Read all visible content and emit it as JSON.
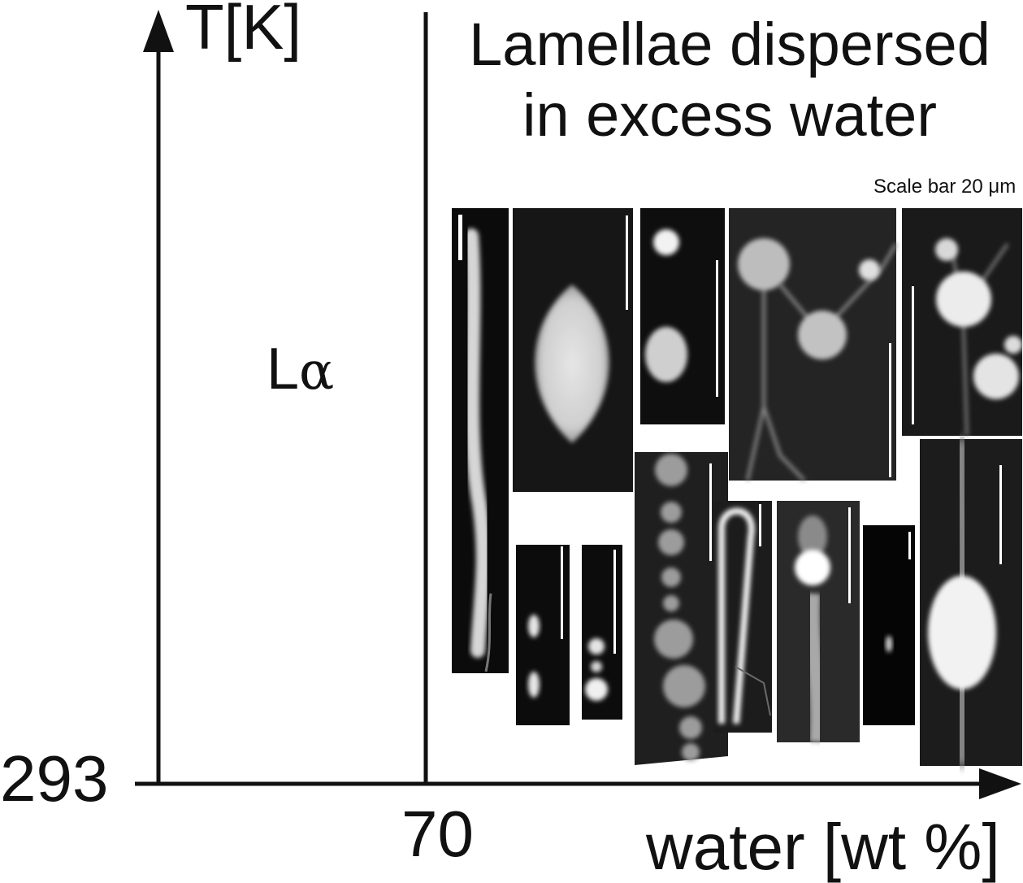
{
  "diagram": {
    "y_axis_title": "T[K]",
    "x_axis_title": "water [wt %]",
    "y_tick": "293",
    "x_tick": "70",
    "phase": {
      "letter": "L",
      "subscript": "α"
    },
    "region_title": "Lamellae dispersed in excess water",
    "scale_note": "Scale bar 20 μm"
  }
}
